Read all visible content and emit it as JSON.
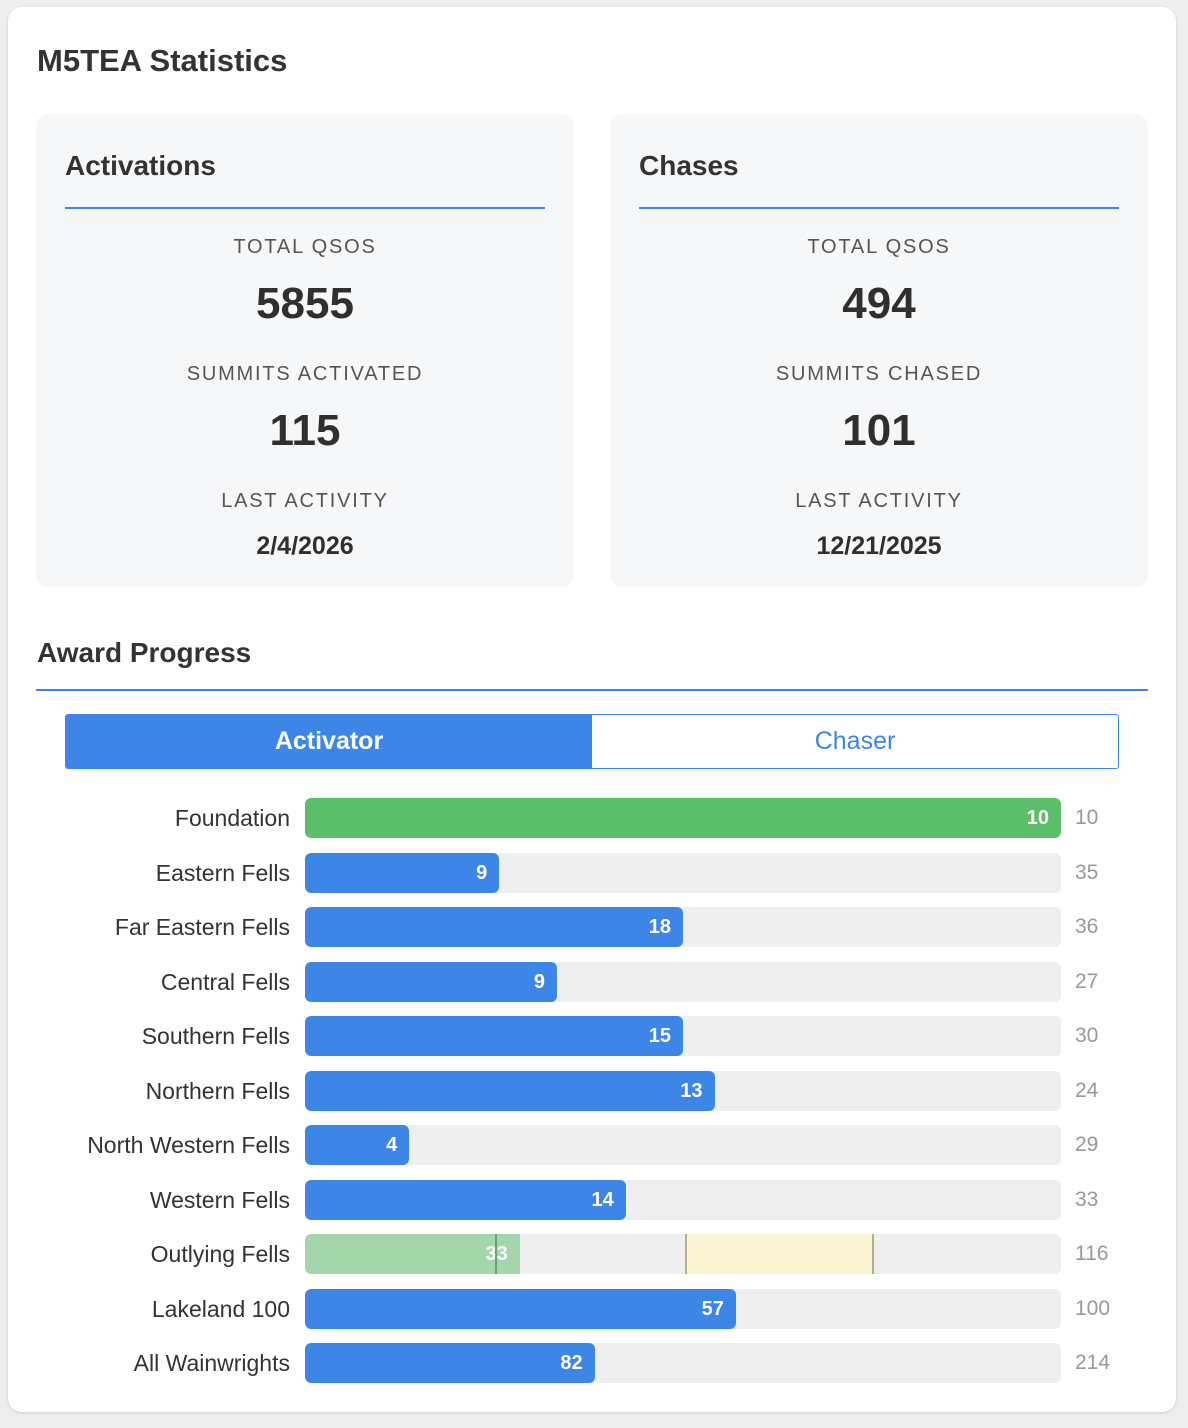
{
  "title": "M5TEA Statistics",
  "activations": {
    "heading": "Activations",
    "total_qsos_label": "TOTAL QSOS",
    "total_qsos": "5855",
    "summits_label": "SUMMITS ACTIVATED",
    "summits": "115",
    "last_activity_label": "LAST ACTIVITY",
    "last_activity": "2/4/2026"
  },
  "chases": {
    "heading": "Chases",
    "total_qsos_label": "TOTAL QSOS",
    "total_qsos": "494",
    "summits_label": "SUMMITS CHASED",
    "summits": "101",
    "last_activity_label": "LAST ACTIVITY",
    "last_activity": "12/21/2025"
  },
  "award_progress": {
    "heading": "Award Progress",
    "tabs": [
      {
        "label": "Activator",
        "active": true
      },
      {
        "label": "Chaser",
        "active": false
      }
    ],
    "rows": [
      {
        "label": "Foundation",
        "value": 10,
        "total": 10,
        "style": "complete"
      },
      {
        "label": "Eastern Fells",
        "value": 9,
        "total": 35,
        "style": "normal",
        "fill_fraction": 0.257
      },
      {
        "label": "Far Eastern Fells",
        "value": 18,
        "total": 36,
        "style": "normal"
      },
      {
        "label": "Central Fells",
        "value": 9,
        "total": 27,
        "style": "normal"
      },
      {
        "label": "Southern Fells",
        "value": 15,
        "total": 30,
        "style": "normal"
      },
      {
        "label": "Northern Fells",
        "value": 13,
        "total": 24,
        "style": "normal"
      },
      {
        "label": "North Western Fells",
        "value": 4,
        "total": 29,
        "style": "normal"
      },
      {
        "label": "Western Fells",
        "value": 14,
        "total": 33,
        "style": "normal"
      },
      {
        "label": "Outlying Fells",
        "value": 33,
        "total": 116,
        "style": "tiered",
        "fill_fraction": 0.284,
        "marker_fraction": 0.251,
        "zone_fractions": [
          0.502,
          0.753
        ]
      },
      {
        "label": "Lakeland 100",
        "value": 57,
        "total": 100,
        "style": "normal"
      },
      {
        "label": "All Wainwrights",
        "value": 82,
        "total": 214,
        "style": "normal"
      }
    ]
  },
  "colors": {
    "accent": "#3d86e8",
    "complete": "#5bbf6a",
    "partial": "#a5d6ab",
    "zone": "#fcf5d3",
    "track": "#efefef"
  }
}
